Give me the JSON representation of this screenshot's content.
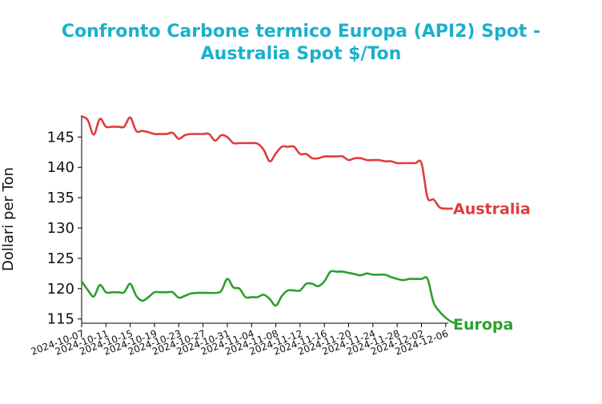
{
  "chart_data": {
    "type": "line",
    "title_lines": [
      "Confronto Carbone termico Europa (API2) Spot -",
      "Australia Spot $/Ton"
    ],
    "ylabel": "Dollari per Ton",
    "xlabel": "",
    "ylim": [
      114.3,
      148.6
    ],
    "yticks": [
      115,
      120,
      125,
      130,
      135,
      140,
      145
    ],
    "xtick_labels": [
      "2024-10-07",
      "2024-10-11",
      "2024-10-15",
      "2024-10-19",
      "2024-10-23",
      "2024-10-27",
      "2024-10-31",
      "2024-11-04",
      "2024-11-08",
      "2024-11-12",
      "2024-11-16",
      "2024-11-20",
      "2024-11-24",
      "2024-11-28",
      "2024-12-02",
      "2024-12-06"
    ],
    "x_start": "2024-10-07",
    "x_end": "2024-12-06",
    "colors": {
      "title": "#1ab0cc",
      "australia": "#e03c3c",
      "europa": "#2ca02c",
      "axis": "#000000"
    },
    "series": [
      {
        "name": "Australia",
        "color": "#e03c3c",
        "points": [
          [
            "2024-10-07",
            148.4
          ],
          [
            "2024-10-08",
            147.8
          ],
          [
            "2024-10-09",
            145.4
          ],
          [
            "2024-10-10",
            148.0
          ],
          [
            "2024-10-11",
            146.7
          ],
          [
            "2024-10-12",
            146.7
          ],
          [
            "2024-10-13",
            146.7
          ],
          [
            "2024-10-14",
            146.7
          ],
          [
            "2024-10-15",
            148.2
          ],
          [
            "2024-10-16",
            146.0
          ],
          [
            "2024-10-17",
            146.0
          ],
          [
            "2024-10-18",
            145.8
          ],
          [
            "2024-10-19",
            145.5
          ],
          [
            "2024-10-20",
            145.5
          ],
          [
            "2024-10-21",
            145.5
          ],
          [
            "2024-10-22",
            145.7
          ],
          [
            "2024-10-23",
            144.7
          ],
          [
            "2024-10-24",
            145.3
          ],
          [
            "2024-10-25",
            145.5
          ],
          [
            "2024-10-26",
            145.5
          ],
          [
            "2024-10-27",
            145.5
          ],
          [
            "2024-10-28",
            145.5
          ],
          [
            "2024-10-29",
            144.4
          ],
          [
            "2024-10-30",
            145.3
          ],
          [
            "2024-10-31",
            145.0
          ],
          [
            "2024-11-01",
            144.0
          ],
          [
            "2024-11-02",
            144.0
          ],
          [
            "2024-11-03",
            144.0
          ],
          [
            "2024-11-04",
            144.0
          ],
          [
            "2024-11-05",
            143.9
          ],
          [
            "2024-11-06",
            142.9
          ],
          [
            "2024-11-07",
            141.0
          ],
          [
            "2024-11-08",
            142.3
          ],
          [
            "2024-11-09",
            143.4
          ],
          [
            "2024-11-10",
            143.4
          ],
          [
            "2024-11-11",
            143.4
          ],
          [
            "2024-11-12",
            142.2
          ],
          [
            "2024-11-13",
            142.2
          ],
          [
            "2024-11-14",
            141.5
          ],
          [
            "2024-11-15",
            141.5
          ],
          [
            "2024-11-16",
            141.8
          ],
          [
            "2024-11-17",
            141.8
          ],
          [
            "2024-11-18",
            141.8
          ],
          [
            "2024-11-19",
            141.8
          ],
          [
            "2024-11-20",
            141.2
          ],
          [
            "2024-11-21",
            141.5
          ],
          [
            "2024-11-22",
            141.5
          ],
          [
            "2024-11-23",
            141.2
          ],
          [
            "2024-11-24",
            141.2
          ],
          [
            "2024-11-25",
            141.2
          ],
          [
            "2024-11-26",
            141.0
          ],
          [
            "2024-11-27",
            141.0
          ],
          [
            "2024-11-28",
            140.7
          ],
          [
            "2024-11-29",
            140.7
          ],
          [
            "2024-11-30",
            140.7
          ],
          [
            "2024-12-01",
            140.7
          ],
          [
            "2024-12-02",
            140.7
          ],
          [
            "2024-12-03",
            135.0
          ],
          [
            "2024-12-04",
            134.7
          ],
          [
            "2024-12-05",
            133.4
          ],
          [
            "2024-12-06",
            133.2
          ],
          [
            "2024-12-07",
            133.2
          ]
        ]
      },
      {
        "name": "Europa",
        "color": "#2ca02c",
        "points": [
          [
            "2024-10-07",
            121.2
          ],
          [
            "2024-10-08",
            119.8
          ],
          [
            "2024-10-09",
            118.7
          ],
          [
            "2024-10-10",
            120.6
          ],
          [
            "2024-10-11",
            119.4
          ],
          [
            "2024-10-12",
            119.4
          ],
          [
            "2024-10-13",
            119.4
          ],
          [
            "2024-10-14",
            119.4
          ],
          [
            "2024-10-15",
            120.8
          ],
          [
            "2024-10-16",
            118.8
          ],
          [
            "2024-10-17",
            118.0
          ],
          [
            "2024-10-18",
            118.6
          ],
          [
            "2024-10-19",
            119.4
          ],
          [
            "2024-10-20",
            119.4
          ],
          [
            "2024-10-21",
            119.4
          ],
          [
            "2024-10-22",
            119.4
          ],
          [
            "2024-10-23",
            118.5
          ],
          [
            "2024-10-24",
            118.8
          ],
          [
            "2024-10-25",
            119.2
          ],
          [
            "2024-10-26",
            119.3
          ],
          [
            "2024-10-27",
            119.3
          ],
          [
            "2024-10-28",
            119.3
          ],
          [
            "2024-10-29",
            119.3
          ],
          [
            "2024-10-30",
            119.6
          ],
          [
            "2024-10-31",
            121.6
          ],
          [
            "2024-11-01",
            120.2
          ],
          [
            "2024-11-02",
            120.0
          ],
          [
            "2024-11-03",
            118.6
          ],
          [
            "2024-11-04",
            118.6
          ],
          [
            "2024-11-05",
            118.6
          ],
          [
            "2024-11-06",
            119.0
          ],
          [
            "2024-11-07",
            118.3
          ],
          [
            "2024-11-08",
            117.2
          ],
          [
            "2024-11-09",
            118.8
          ],
          [
            "2024-11-10",
            119.7
          ],
          [
            "2024-11-11",
            119.7
          ],
          [
            "2024-11-12",
            119.7
          ],
          [
            "2024-11-13",
            120.8
          ],
          [
            "2024-11-14",
            120.8
          ],
          [
            "2024-11-15",
            120.4
          ],
          [
            "2024-11-16",
            121.2
          ],
          [
            "2024-11-17",
            122.8
          ],
          [
            "2024-11-18",
            122.8
          ],
          [
            "2024-11-19",
            122.8
          ],
          [
            "2024-11-20",
            122.6
          ],
          [
            "2024-11-21",
            122.4
          ],
          [
            "2024-11-22",
            122.2
          ],
          [
            "2024-11-23",
            122.5
          ],
          [
            "2024-11-24",
            122.3
          ],
          [
            "2024-11-25",
            122.3
          ],
          [
            "2024-11-26",
            122.3
          ],
          [
            "2024-11-27",
            121.9
          ],
          [
            "2024-11-28",
            121.6
          ],
          [
            "2024-11-29",
            121.4
          ],
          [
            "2024-11-30",
            121.6
          ],
          [
            "2024-12-01",
            121.6
          ],
          [
            "2024-12-02",
            121.6
          ],
          [
            "2024-12-03",
            121.6
          ],
          [
            "2024-12-04",
            117.7
          ],
          [
            "2024-12-05",
            116.2
          ],
          [
            "2024-12-06",
            115.2
          ],
          [
            "2024-12-07",
            114.5
          ],
          [
            "2024-12-08",
            114.2
          ]
        ]
      }
    ]
  }
}
